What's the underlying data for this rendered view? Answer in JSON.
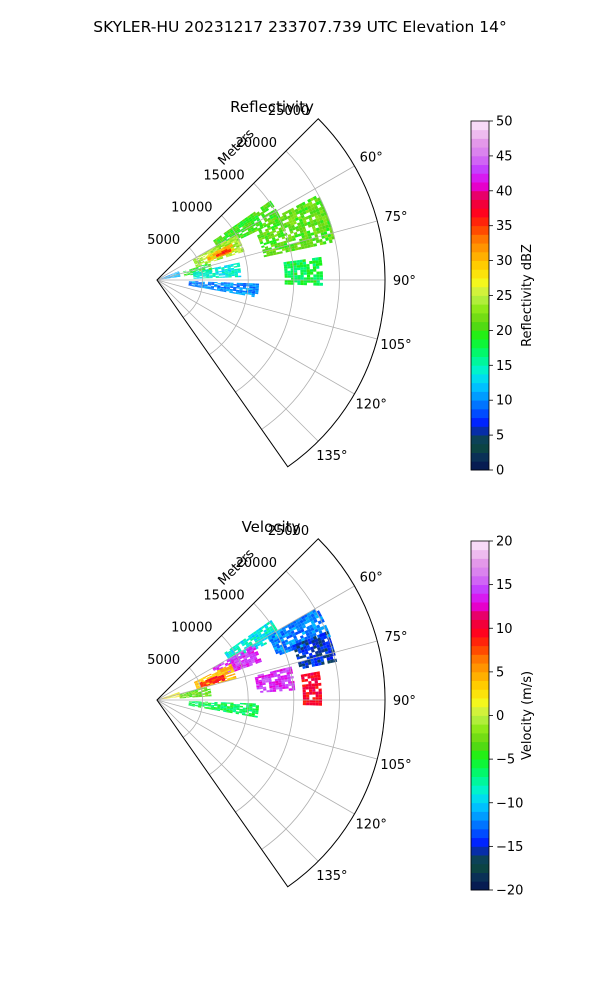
{
  "figure": {
    "suptitle": "SKYLER-HU  20231217  233707.739 UTC Elevation 14°"
  },
  "chart_data": [
    {
      "type": "polar-sector",
      "title": "Reflectivity",
      "radial_axis_label": "Meters",
      "radial_ticks": [
        5000,
        10000,
        15000,
        20000,
        25000
      ],
      "radial_tick_labels": [
        "5000",
        "10000",
        "15000",
        "20000",
        "25000"
      ],
      "radial_range": [
        0,
        25000
      ],
      "azimuth_range_deg": [
        45,
        145
      ],
      "azimuth_ticks_deg": [
        60,
        75,
        90,
        105,
        120,
        135
      ],
      "azimuth_tick_labels": [
        "60°",
        "75°",
        "90°",
        "105°",
        "120°",
        "135°"
      ],
      "grid": true,
      "colorbar": {
        "label": "Reflectivity dBZ",
        "range": [
          0,
          50
        ],
        "ticks": [
          0,
          5,
          10,
          15,
          20,
          25,
          30,
          35,
          40,
          45,
          50
        ],
        "tick_labels": [
          "0",
          "5",
          "10",
          "15",
          "20",
          "25",
          "30",
          "35",
          "40",
          "45",
          "50"
        ]
      },
      "echo_regions": [
        {
          "az": [
            55,
            64
          ],
          "r": [
            7500,
            15000
          ],
          "value": 20
        },
        {
          "az": [
            62,
            78
          ],
          "r": [
            12000,
            20000
          ],
          "value": 21
        },
        {
          "az": [
            60,
            72
          ],
          "r": [
            4500,
            10000
          ],
          "value": 24
        },
        {
          "az": [
            64,
            70
          ],
          "r": [
            6000,
            9000
          ],
          "value": 30
        },
        {
          "az": [
            66,
            69
          ],
          "r": [
            7000,
            8500
          ],
          "value": 36
        },
        {
          "az": [
            72,
            82
          ],
          "r": [
            3000,
            6000
          ],
          "value": 19
        },
        {
          "az": [
            78,
            88
          ],
          "r": [
            4000,
            9000
          ],
          "value": 14
        },
        {
          "az": [
            82,
            92
          ],
          "r": [
            14000,
            18000
          ],
          "value": 18
        },
        {
          "az": [
            92,
            100
          ],
          "r": [
            3500,
            11000
          ],
          "value": 10
        },
        {
          "az": [
            68,
            82
          ],
          "r": [
            500,
            2500
          ],
          "value": 11
        }
      ]
    },
    {
      "type": "polar-sector",
      "title": "Velocity",
      "radial_axis_label": "Meters",
      "radial_ticks": [
        5000,
        10000,
        15000,
        20000,
        25000
      ],
      "radial_tick_labels": [
        "5000",
        "10000",
        "15000",
        "20000",
        "25000"
      ],
      "radial_range": [
        0,
        25000
      ],
      "azimuth_range_deg": [
        45,
        145
      ],
      "azimuth_ticks_deg": [
        60,
        75,
        90,
        105,
        120,
        135
      ],
      "azimuth_tick_labels": [
        "60°",
        "75°",
        "90°",
        "105°",
        "120°",
        "135°"
      ],
      "grid": true,
      "colorbar": {
        "label": "Velocity (m/s)",
        "range": [
          -20,
          20
        ],
        "ticks": [
          -20,
          -15,
          -10,
          -5,
          0,
          5,
          10,
          15,
          20
        ],
        "tick_labels": [
          "−20",
          "−15",
          "−10",
          "−5",
          "0",
          "5",
          "10",
          "15",
          "20"
        ]
      },
      "echo_regions": [
        {
          "az": [
            55,
            63
          ],
          "r": [
            9000,
            15000
          ],
          "value": -9
        },
        {
          "az": [
            60,
            70
          ],
          "r": [
            14000,
            20000
          ],
          "value": -12
        },
        {
          "az": [
            68,
            78
          ],
          "r": [
            16000,
            20000
          ],
          "value": -15
        },
        {
          "az": [
            60,
            70
          ],
          "r": [
            7000,
            12000
          ],
          "value": 14
        },
        {
          "az": [
            64,
            75
          ],
          "r": [
            4500,
            9000
          ],
          "value": 4
        },
        {
          "az": [
            68,
            74
          ],
          "r": [
            5000,
            7500
          ],
          "value": 9
        },
        {
          "az": [
            76,
            86
          ],
          "r": [
            11000,
            15000
          ],
          "value": 14
        },
        {
          "az": [
            80,
            92
          ],
          "r": [
            16000,
            18000
          ],
          "value": 10
        },
        {
          "az": [
            75,
            86
          ],
          "r": [
            2500,
            6000
          ],
          "value": -3
        },
        {
          "az": [
            92,
            100
          ],
          "r": [
            3500,
            11000
          ],
          "value": -6
        },
        {
          "az": [
            70,
            82
          ],
          "r": [
            500,
            2500
          ],
          "value": 2
        }
      ]
    }
  ]
}
